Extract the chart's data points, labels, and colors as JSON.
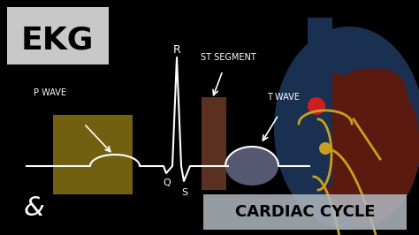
{
  "bg_color": "#000000",
  "ekg_box_color": "#c8c8c8",
  "ekg_text": "EKG",
  "ekg_text_color": "#000000",
  "p_wave_label": "P WAVE",
  "p_wave_label_color": "#ffffff",
  "st_segment_label": "ST SEGMENT",
  "st_segment_label_color": "#ffffff",
  "t_wave_label": "T WAVE",
  "t_wave_label_color": "#ffffff",
  "r_label": "R",
  "q_label": "Q",
  "s_label": "S",
  "ampersand": "&",
  "cardiac_cycle_label": "CARDIAC CYCLE",
  "cardiac_cycle_box_color": "#b0b8c0",
  "cardiac_cycle_text_color": "#000000",
  "p_wave_box_color": "#706010",
  "st_box_color": "#5a3020",
  "t_wave_dome_color": "#555870",
  "ecg_line_color": "#ffffff",
  "heart_dark_red": "#5a1a10",
  "heart_blue": "#1a3050",
  "heart_nerve_yellow": "#c8a020",
  "heart_sa_red": "#cc2020",
  "heart_av_yellow": "#c8a020",
  "ampersand_color": "#ffffff"
}
